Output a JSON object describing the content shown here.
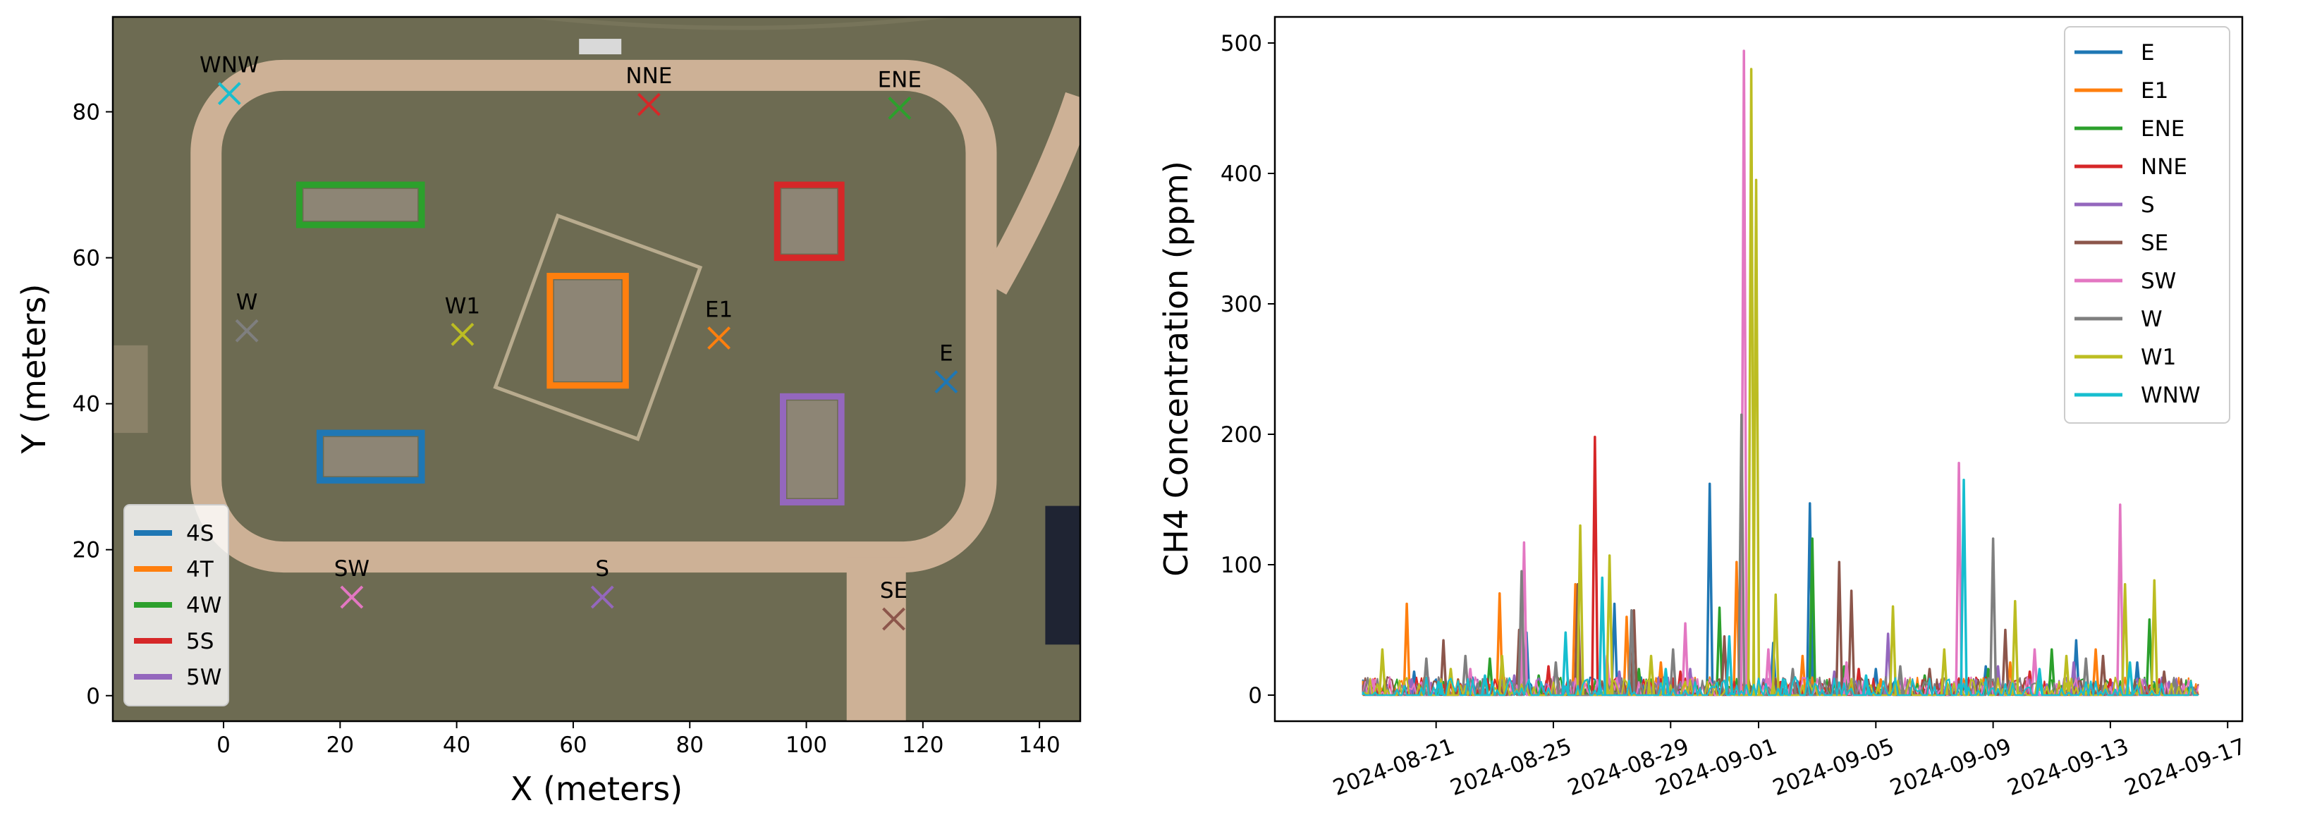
{
  "colors": {
    "tab_blue": "#1f77b4",
    "tab_orange": "#ff7f0e",
    "tab_green": "#2ca02c",
    "tab_red": "#d62728",
    "tab_purple": "#9467bd",
    "tab_brown": "#8c564b",
    "tab_pink": "#e377c2",
    "tab_gray": "#7f7f7f",
    "tab_olive": "#bcbd22",
    "tab_cyan": "#17becf",
    "ground": "#6d6b52",
    "road": "#cdb196"
  },
  "chart_data": [
    {
      "type": "scatter",
      "background": "aerial site map",
      "xlabel": "X (meters)",
      "ylabel": "Y (meters)",
      "xlim": [
        -19,
        147
      ],
      "ylim": [
        -3.5,
        93
      ],
      "xticks": [
        0,
        20,
        40,
        60,
        80,
        100,
        120,
        140
      ],
      "yticks": [
        0,
        20,
        40,
        60,
        80
      ],
      "legend_position": "lower-left",
      "sensors": [
        {
          "label": "WNW",
          "x": 1,
          "y": 82.5,
          "color": "#17becf"
        },
        {
          "label": "NNE",
          "x": 73,
          "y": 81,
          "color": "#d62728"
        },
        {
          "label": "ENE",
          "x": 116,
          "y": 80.5,
          "color": "#2ca02c"
        },
        {
          "label": "W",
          "x": 4,
          "y": 50,
          "color": "#7f7f7f"
        },
        {
          "label": "W1",
          "x": 41,
          "y": 49.5,
          "color": "#bcbd22"
        },
        {
          "label": "E1",
          "x": 85,
          "y": 49,
          "color": "#ff7f0e"
        },
        {
          "label": "E",
          "x": 124,
          "y": 43,
          "color": "#1f77b4"
        },
        {
          "label": "SW",
          "x": 22,
          "y": 13.5,
          "color": "#e377c2"
        },
        {
          "label": "S",
          "x": 65,
          "y": 13.5,
          "color": "#9467bd"
        },
        {
          "label": "SE",
          "x": 115,
          "y": 10.5,
          "color": "#8c564b"
        }
      ],
      "sources": [
        {
          "label": "4S",
          "x0": 16.5,
          "x1": 34,
          "y0": 29.5,
          "y1": 36,
          "color": "#1f77b4"
        },
        {
          "label": "4T",
          "x0": 56,
          "x1": 69,
          "y0": 42.5,
          "y1": 57.5,
          "color": "#ff7f0e"
        },
        {
          "label": "4W",
          "x0": 13,
          "x1": 34,
          "y0": 64.5,
          "y1": 70,
          "color": "#2ca02c"
        },
        {
          "label": "5S",
          "x0": 95,
          "x1": 106,
          "y0": 60,
          "y1": 70,
          "color": "#d62728"
        },
        {
          "label": "5W",
          "x0": 96,
          "x1": 106,
          "y0": 26.5,
          "y1": 41,
          "color": "#9467bd"
        }
      ]
    },
    {
      "type": "line",
      "xlabel": "",
      "ylabel": "CH4 Concentration (ppm)",
      "xlim": [
        "2024-08-15T12:00",
        "2024-09-17T12:00"
      ],
      "ylim": [
        -20,
        520
      ],
      "yticks": [
        0,
        100,
        200,
        300,
        400,
        500
      ],
      "xticks": [
        "2024-08-21",
        "2024-08-25",
        "2024-08-29",
        "2024-09-01",
        "2024-09-05",
        "2024-09-09",
        "2024-09-13",
        "2024-09-17"
      ],
      "legend_position": "upper-right",
      "series": [
        {
          "name": "E",
          "color": "#1f77b4",
          "spikes": [
            [
              "2024-08-20T06:00",
              18
            ],
            [
              "2024-08-24T02:00",
              48
            ],
            [
              "2024-08-27T02:00",
              70
            ],
            [
              "2024-08-30T08:00",
              162
            ],
            [
              "2024-09-01T12:00",
              40
            ],
            [
              "2024-09-02T18:00",
              147
            ],
            [
              "2024-09-05T00:00",
              20
            ],
            [
              "2024-09-08T18:00",
              22
            ],
            [
              "2024-09-11T20:00",
              42
            ],
            [
              "2024-09-13T22:00",
              25
            ]
          ]
        },
        {
          "name": "E1",
          "color": "#ff7f0e",
          "spikes": [
            [
              "2024-08-20T00:00",
              70
            ],
            [
              "2024-08-21T18:00",
              12
            ],
            [
              "2024-08-23T04:00",
              78
            ],
            [
              "2024-08-25T18:00",
              85
            ],
            [
              "2024-08-27T12:00",
              60
            ],
            [
              "2024-08-28T16:00",
              25
            ],
            [
              "2024-08-31T06:00",
              102
            ],
            [
              "2024-09-02T12:00",
              30
            ],
            [
              "2024-09-05T04:00",
              12
            ],
            [
              "2024-09-09T14:00",
              25
            ],
            [
              "2024-09-12T12:00",
              35
            ]
          ]
        },
        {
          "name": "ENE",
          "color": "#2ca02c",
          "spikes": [
            [
              "2024-08-20T12:00",
              10
            ],
            [
              "2024-08-22T20:00",
              28
            ],
            [
              "2024-08-24T12:00",
              15
            ],
            [
              "2024-08-27T22:00",
              20
            ],
            [
              "2024-08-30T16:00",
              67
            ],
            [
              "2024-09-02T20:00",
              120
            ],
            [
              "2024-09-03T22:00",
              22
            ],
            [
              "2024-09-06T16:00",
              15
            ],
            [
              "2024-09-08T20:00",
              20
            ],
            [
              "2024-09-11T00:00",
              35
            ],
            [
              "2024-09-14T08:00",
              58
            ]
          ]
        },
        {
          "name": "NNE",
          "color": "#d62728",
          "spikes": [
            [
              "2024-08-21T20:00",
              8
            ],
            [
              "2024-08-24T20:00",
              22
            ],
            [
              "2024-08-26T10:00",
              198
            ],
            [
              "2024-08-29T08:00",
              18
            ],
            [
              "2024-09-01T18:00",
              10
            ],
            [
              "2024-09-04T10:00",
              20
            ],
            [
              "2024-09-07T06:00",
              12
            ],
            [
              "2024-09-10T06:00",
              18
            ],
            [
              "2024-09-13T00:00",
              12
            ]
          ]
        },
        {
          "name": "S",
          "color": "#9467bd",
          "spikes": [
            [
              "2024-08-20T04:00",
              12
            ],
            [
              "2024-08-23T16:00",
              15
            ],
            [
              "2024-08-27T06:00",
              18
            ],
            [
              "2024-08-29T16:00",
              20
            ],
            [
              "2024-09-01T04:00",
              12
            ],
            [
              "2024-09-03T14:00",
              18
            ],
            [
              "2024-09-05T10:00",
              47
            ],
            [
              "2024-09-09T04:00",
              22
            ],
            [
              "2024-09-11T18:00",
              25
            ],
            [
              "2024-09-15T00:00",
              10
            ]
          ]
        },
        {
          "name": "SE",
          "color": "#8c564b",
          "spikes": [
            [
              "2024-08-21T06:00",
              42
            ],
            [
              "2024-08-23T20:00",
              50
            ],
            [
              "2024-08-25T20:00",
              85
            ],
            [
              "2024-08-27T18:00",
              65
            ],
            [
              "2024-08-30T20:00",
              45
            ],
            [
              "2024-09-03T18:00",
              102
            ],
            [
              "2024-09-04T04:00",
              80
            ],
            [
              "2024-09-06T20:00",
              20
            ],
            [
              "2024-09-09T10:00",
              50
            ],
            [
              "2024-09-12T18:00",
              30
            ],
            [
              "2024-09-14T20:00",
              18
            ]
          ]
        },
        {
          "name": "SW",
          "color": "#e377c2",
          "spikes": [
            [
              "2024-08-18T20:00",
              12
            ],
            [
              "2024-08-22T04:00",
              20
            ],
            [
              "2024-08-24T00:00",
              117
            ],
            [
              "2024-08-26T20:00",
              30
            ],
            [
              "2024-08-29T12:00",
              55
            ],
            [
              "2024-08-31T12:00",
              494
            ],
            [
              "2024-09-01T08:00",
              35
            ],
            [
              "2024-09-04T00:00",
              25
            ],
            [
              "2024-09-07T20:00",
              178
            ],
            [
              "2024-09-10T10:00",
              35
            ],
            [
              "2024-09-13T08:00",
              146
            ],
            [
              "2024-09-15T12:00",
              8
            ]
          ]
        },
        {
          "name": "W",
          "color": "#7f7f7f",
          "spikes": [
            [
              "2024-08-20T16:00",
              28
            ],
            [
              "2024-08-22T00:00",
              30
            ],
            [
              "2024-08-23T22:00",
              95
            ],
            [
              "2024-08-25T02:00",
              25
            ],
            [
              "2024-08-27T16:00",
              65
            ],
            [
              "2024-08-29T02:00",
              35
            ],
            [
              "2024-08-31T10:00",
              215
            ],
            [
              "2024-09-02T04:00",
              20
            ],
            [
              "2024-09-05T20:00",
              22
            ],
            [
              "2024-09-09T00:00",
              120
            ],
            [
              "2024-09-12T04:00",
              28
            ],
            [
              "2024-09-15T04:00",
              12
            ]
          ]
        },
        {
          "name": "W1",
          "color": "#bcbd22",
          "spikes": [
            [
              "2024-08-19T04:00",
              35
            ],
            [
              "2024-08-21T12:00",
              20
            ],
            [
              "2024-08-23T06:00",
              30
            ],
            [
              "2024-08-25T22:00",
              130
            ],
            [
              "2024-08-26T22:00",
              107
            ],
            [
              "2024-08-28T08:00",
              30
            ],
            [
              "2024-08-31T18:00",
              480
            ],
            [
              "2024-08-31T22:00",
              395
            ],
            [
              "2024-09-01T14:00",
              77
            ],
            [
              "2024-09-05T14:00",
              68
            ],
            [
              "2024-09-07T08:00",
              35
            ],
            [
              "2024-09-09T18:00",
              72
            ],
            [
              "2024-09-11T12:00",
              30
            ],
            [
              "2024-09-13T12:00",
              85
            ],
            [
              "2024-09-14T12:00",
              88
            ]
          ]
        },
        {
          "name": "WNW",
          "color": "#17becf",
          "spikes": [
            [
              "2024-08-21T02:00",
              10
            ],
            [
              "2024-08-22T16:00",
              15
            ],
            [
              "2024-08-25T10:00",
              48
            ],
            [
              "2024-08-26T16:00",
              90
            ],
            [
              "2024-08-28T20:00",
              20
            ],
            [
              "2024-08-31T00:00",
              45
            ],
            [
              "2024-09-01T20:00",
              12
            ],
            [
              "2024-09-04T16:00",
              15
            ],
            [
              "2024-09-08T00:00",
              165
            ],
            [
              "2024-09-10T14:00",
              20
            ],
            [
              "2024-09-13T16:00",
              25
            ]
          ]
        }
      ]
    }
  ]
}
